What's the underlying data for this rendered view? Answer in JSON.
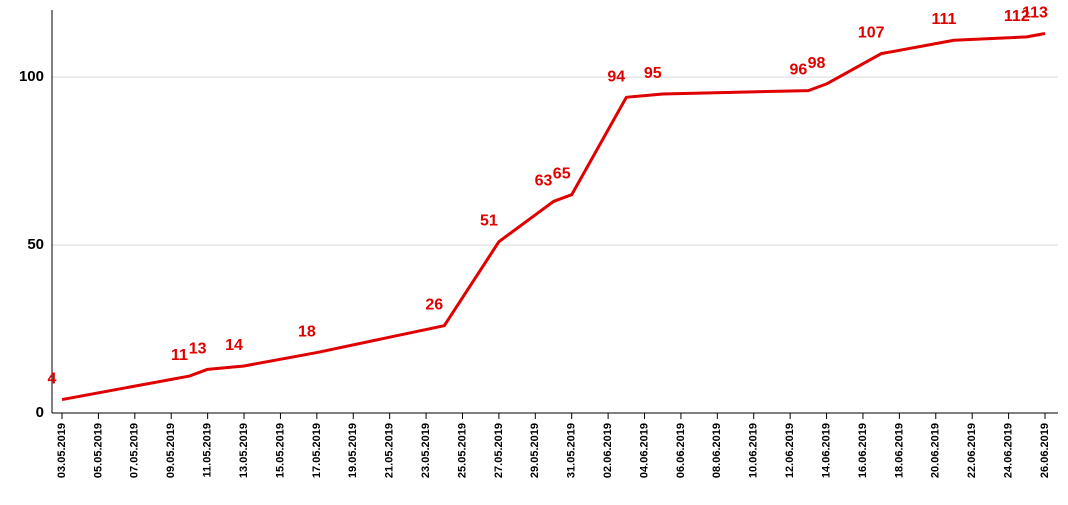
{
  "chart_data": {
    "type": "line",
    "x": [
      "03.05.2019",
      "10.05.2019",
      "11.05.2019",
      "13.05.2019",
      "17.05.2019",
      "24.05.2019",
      "27.05.2019",
      "30.05.2019",
      "31.05.2019",
      "03.06.2019",
      "05.06.2019",
      "13.06.2019",
      "14.06.2019",
      "17.06.2019",
      "21.06.2019",
      "25.06.2019",
      "26.06.2019"
    ],
    "series": [
      {
        "color": "#e00000",
        "values": [
          4,
          11,
          13,
          14,
          18,
          26,
          51,
          63,
          65,
          94,
          95,
          96,
          98,
          107,
          111,
          112,
          113
        ]
      }
    ],
    "xlim": [
      "03.05.2019",
      "26.06.2019"
    ],
    "xticks": [
      "03.05.2019",
      "05.05.2019",
      "07.05.2019",
      "09.05.2019",
      "11.05.2019",
      "13.05.2019",
      "15.05.2019",
      "17.05.2019",
      "19.05.2019",
      "21.05.2019",
      "23.05.2019",
      "25.05.2019",
      "27.05.2019",
      "29.05.2019",
      "31.05.2019",
      "02.06.2019",
      "04.06.2019",
      "06.06.2019",
      "08.06.2019",
      "10.06.2019",
      "12.06.2019",
      "14.06.2019",
      "16.06.2019",
      "18.06.2019",
      "20.06.2019",
      "22.06.2019",
      "24.06.2019",
      "26.06.2019"
    ],
    "ylim": [
      0,
      120
    ],
    "yticks": [
      0,
      50,
      100
    ],
    "grid": true
  }
}
